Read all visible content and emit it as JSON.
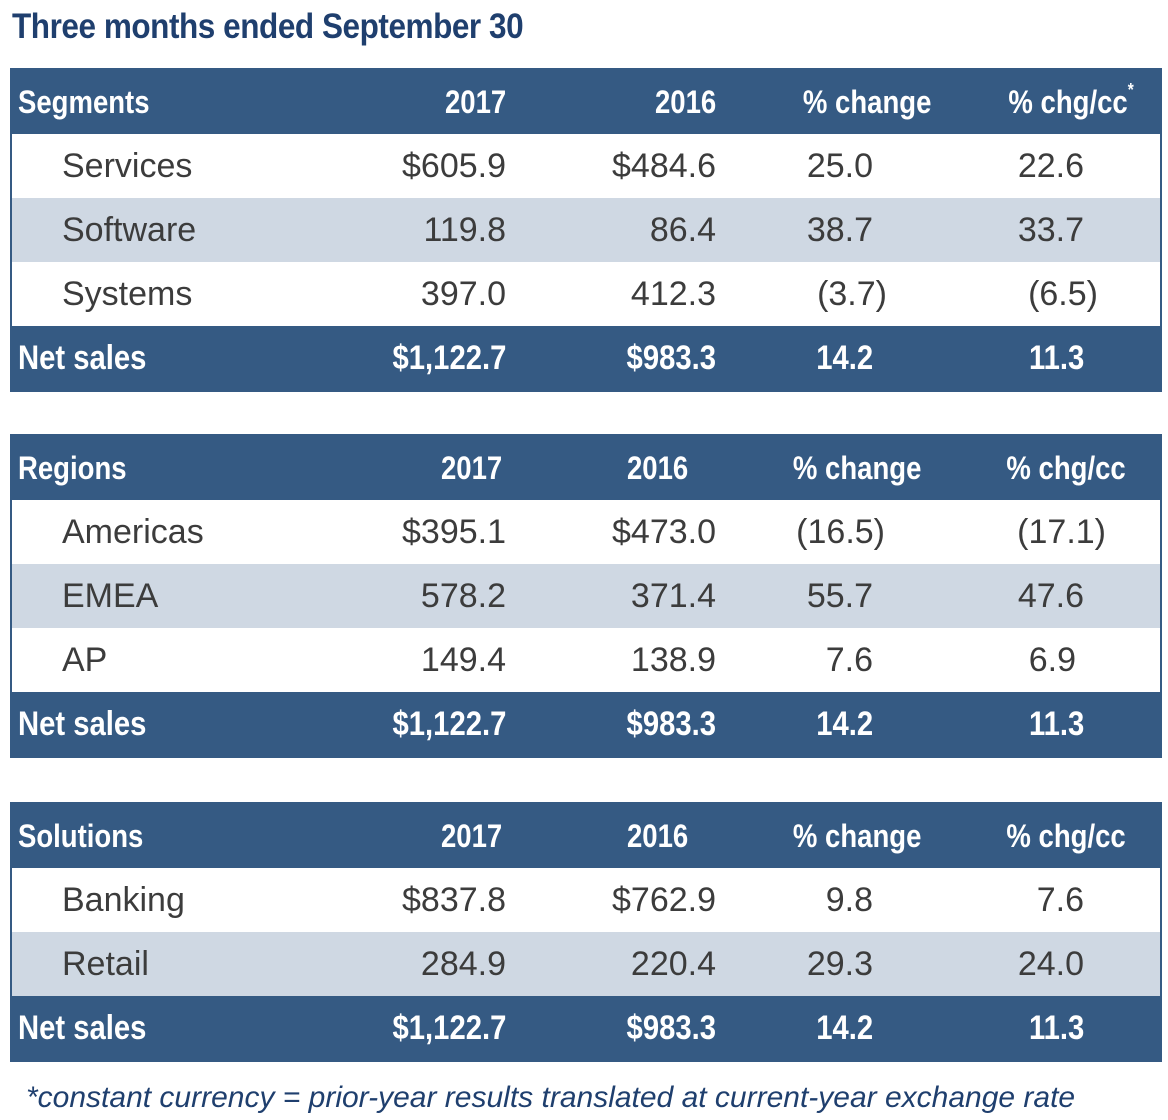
{
  "title": "Three months ended September 30",
  "tables": [
    {
      "header": {
        "label": "Segments",
        "c1": "2017",
        "c2": "2016",
        "c3": "% change",
        "c4": "% chg/cc",
        "c4_mark": "*"
      },
      "rows": [
        {
          "label": "Services",
          "c1": "$605.9",
          "c2": "$484.6",
          "c3": "25.0",
          "c4": "22.6"
        },
        {
          "label": "Software",
          "c1": "119.8",
          "c2": "86.4",
          "c3": "38.7",
          "c4": "33.7"
        },
        {
          "label": "Systems",
          "c1": "397.0",
          "c2": "412.3",
          "c3": "(3.7)",
          "c4": "(6.5)"
        }
      ],
      "total": {
        "label": "Net sales",
        "c1": "$1,122.7",
        "c2": "$983.3",
        "c3": "14.2",
        "c4": "11.3"
      }
    },
    {
      "header": {
        "label": "Regions",
        "c1": "2017",
        "c2": "2016",
        "c3": "% change",
        "c4": "% chg/cc"
      },
      "rows": [
        {
          "label": "Americas",
          "c1": "$395.1",
          "c2": "$473.0",
          "c3": "(16.5)",
          "c4": "(17.1)"
        },
        {
          "label": "EMEA",
          "c1": "578.2",
          "c2": "371.4",
          "c3": "55.7",
          "c4": "47.6"
        },
        {
          "label": "AP",
          "c1": "149.4",
          "c2": "138.9",
          "c3": "7.6",
          "c4": "6.9"
        }
      ],
      "total": {
        "label": "Net sales",
        "c1": "$1,122.7",
        "c2": "$983.3",
        "c3": "14.2",
        "c4": "11.3"
      }
    },
    {
      "header": {
        "label": "Solutions",
        "c1": "2017",
        "c2": "2016",
        "c3": "% change",
        "c4": "% chg/cc"
      },
      "rows": [
        {
          "label": "Banking",
          "c1": "$837.8",
          "c2": "$762.9",
          "c3": "9.8",
          "c4": "7.6"
        },
        {
          "label": "Retail",
          "c1": "284.9",
          "c2": "220.4",
          "c3": "29.3",
          "c4": "24.0"
        }
      ],
      "total": {
        "label": "Net sales",
        "c1": "$1,122.7",
        "c2": "$983.3",
        "c3": "14.2",
        "c4": "11.3"
      }
    }
  ],
  "footnote": "*constant currency = prior-year results translated at current-year exchange rate",
  "colors": {
    "header_bg": "#355a83",
    "alt_row_bg": "#cfd8e3",
    "title_text": "#1f3f6e"
  }
}
